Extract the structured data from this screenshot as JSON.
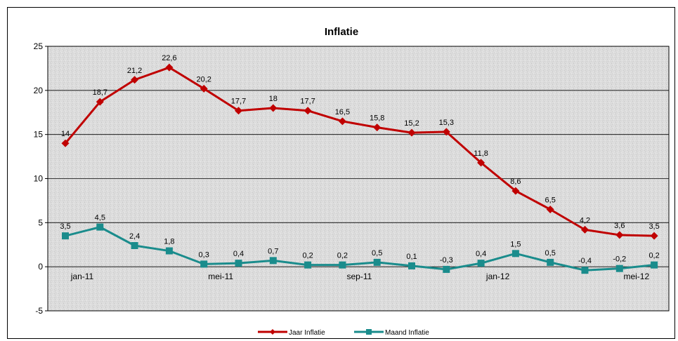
{
  "chart_data": {
    "type": "line",
    "title": "Inflatie",
    "xlabel": "",
    "ylabel": "",
    "ylim": [
      -5,
      25
    ],
    "yticks": [
      -5,
      0,
      5,
      10,
      15,
      20,
      25
    ],
    "grid": "horizontal",
    "legend_position": "bottom",
    "x_tick_labels": [
      {
        "index": 0,
        "label": "jan-11"
      },
      {
        "index": 4,
        "label": "mei-11"
      },
      {
        "index": 8,
        "label": "sep-11"
      },
      {
        "index": 12,
        "label": "jan-12"
      },
      {
        "index": 16,
        "label": "mei-12"
      }
    ],
    "series": [
      {
        "name": "Jaar Inflatie",
        "color": "#c00000",
        "marker": "diamond",
        "values": [
          14,
          18.7,
          21.2,
          22.6,
          20.2,
          17.7,
          18,
          17.7,
          16.5,
          15.8,
          15.2,
          15.3,
          11.8,
          8.6,
          6.5,
          4.2,
          3.6,
          3.5
        ],
        "labels": [
          "14",
          "18,7",
          "21,2",
          "22,6",
          "20,2",
          "17,7",
          "18",
          "17,7",
          "16,5",
          "15,8",
          "15,2",
          "15,3",
          "11,8",
          "8,6",
          "6,5",
          "4,2",
          "3,6",
          "3,5"
        ]
      },
      {
        "name": "Maand Inflatie",
        "color": "#1a8c8c",
        "marker": "square",
        "values": [
          3.5,
          4.5,
          2.4,
          1.8,
          0.3,
          0.4,
          0.7,
          0.2,
          0.2,
          0.5,
          0.1,
          -0.3,
          0.4,
          1.5,
          0.5,
          -0.4,
          -0.2,
          0.2
        ],
        "labels": [
          "3,5",
          "4,5",
          "2,4",
          "1,8",
          "0,3",
          "0,4",
          "0,7",
          "0,2",
          "0,2",
          "0,5",
          "0,1",
          "-0,3",
          "0,4",
          "1,5",
          "0,5",
          "-0,4",
          "-0,2",
          "0,2"
        ]
      }
    ]
  }
}
